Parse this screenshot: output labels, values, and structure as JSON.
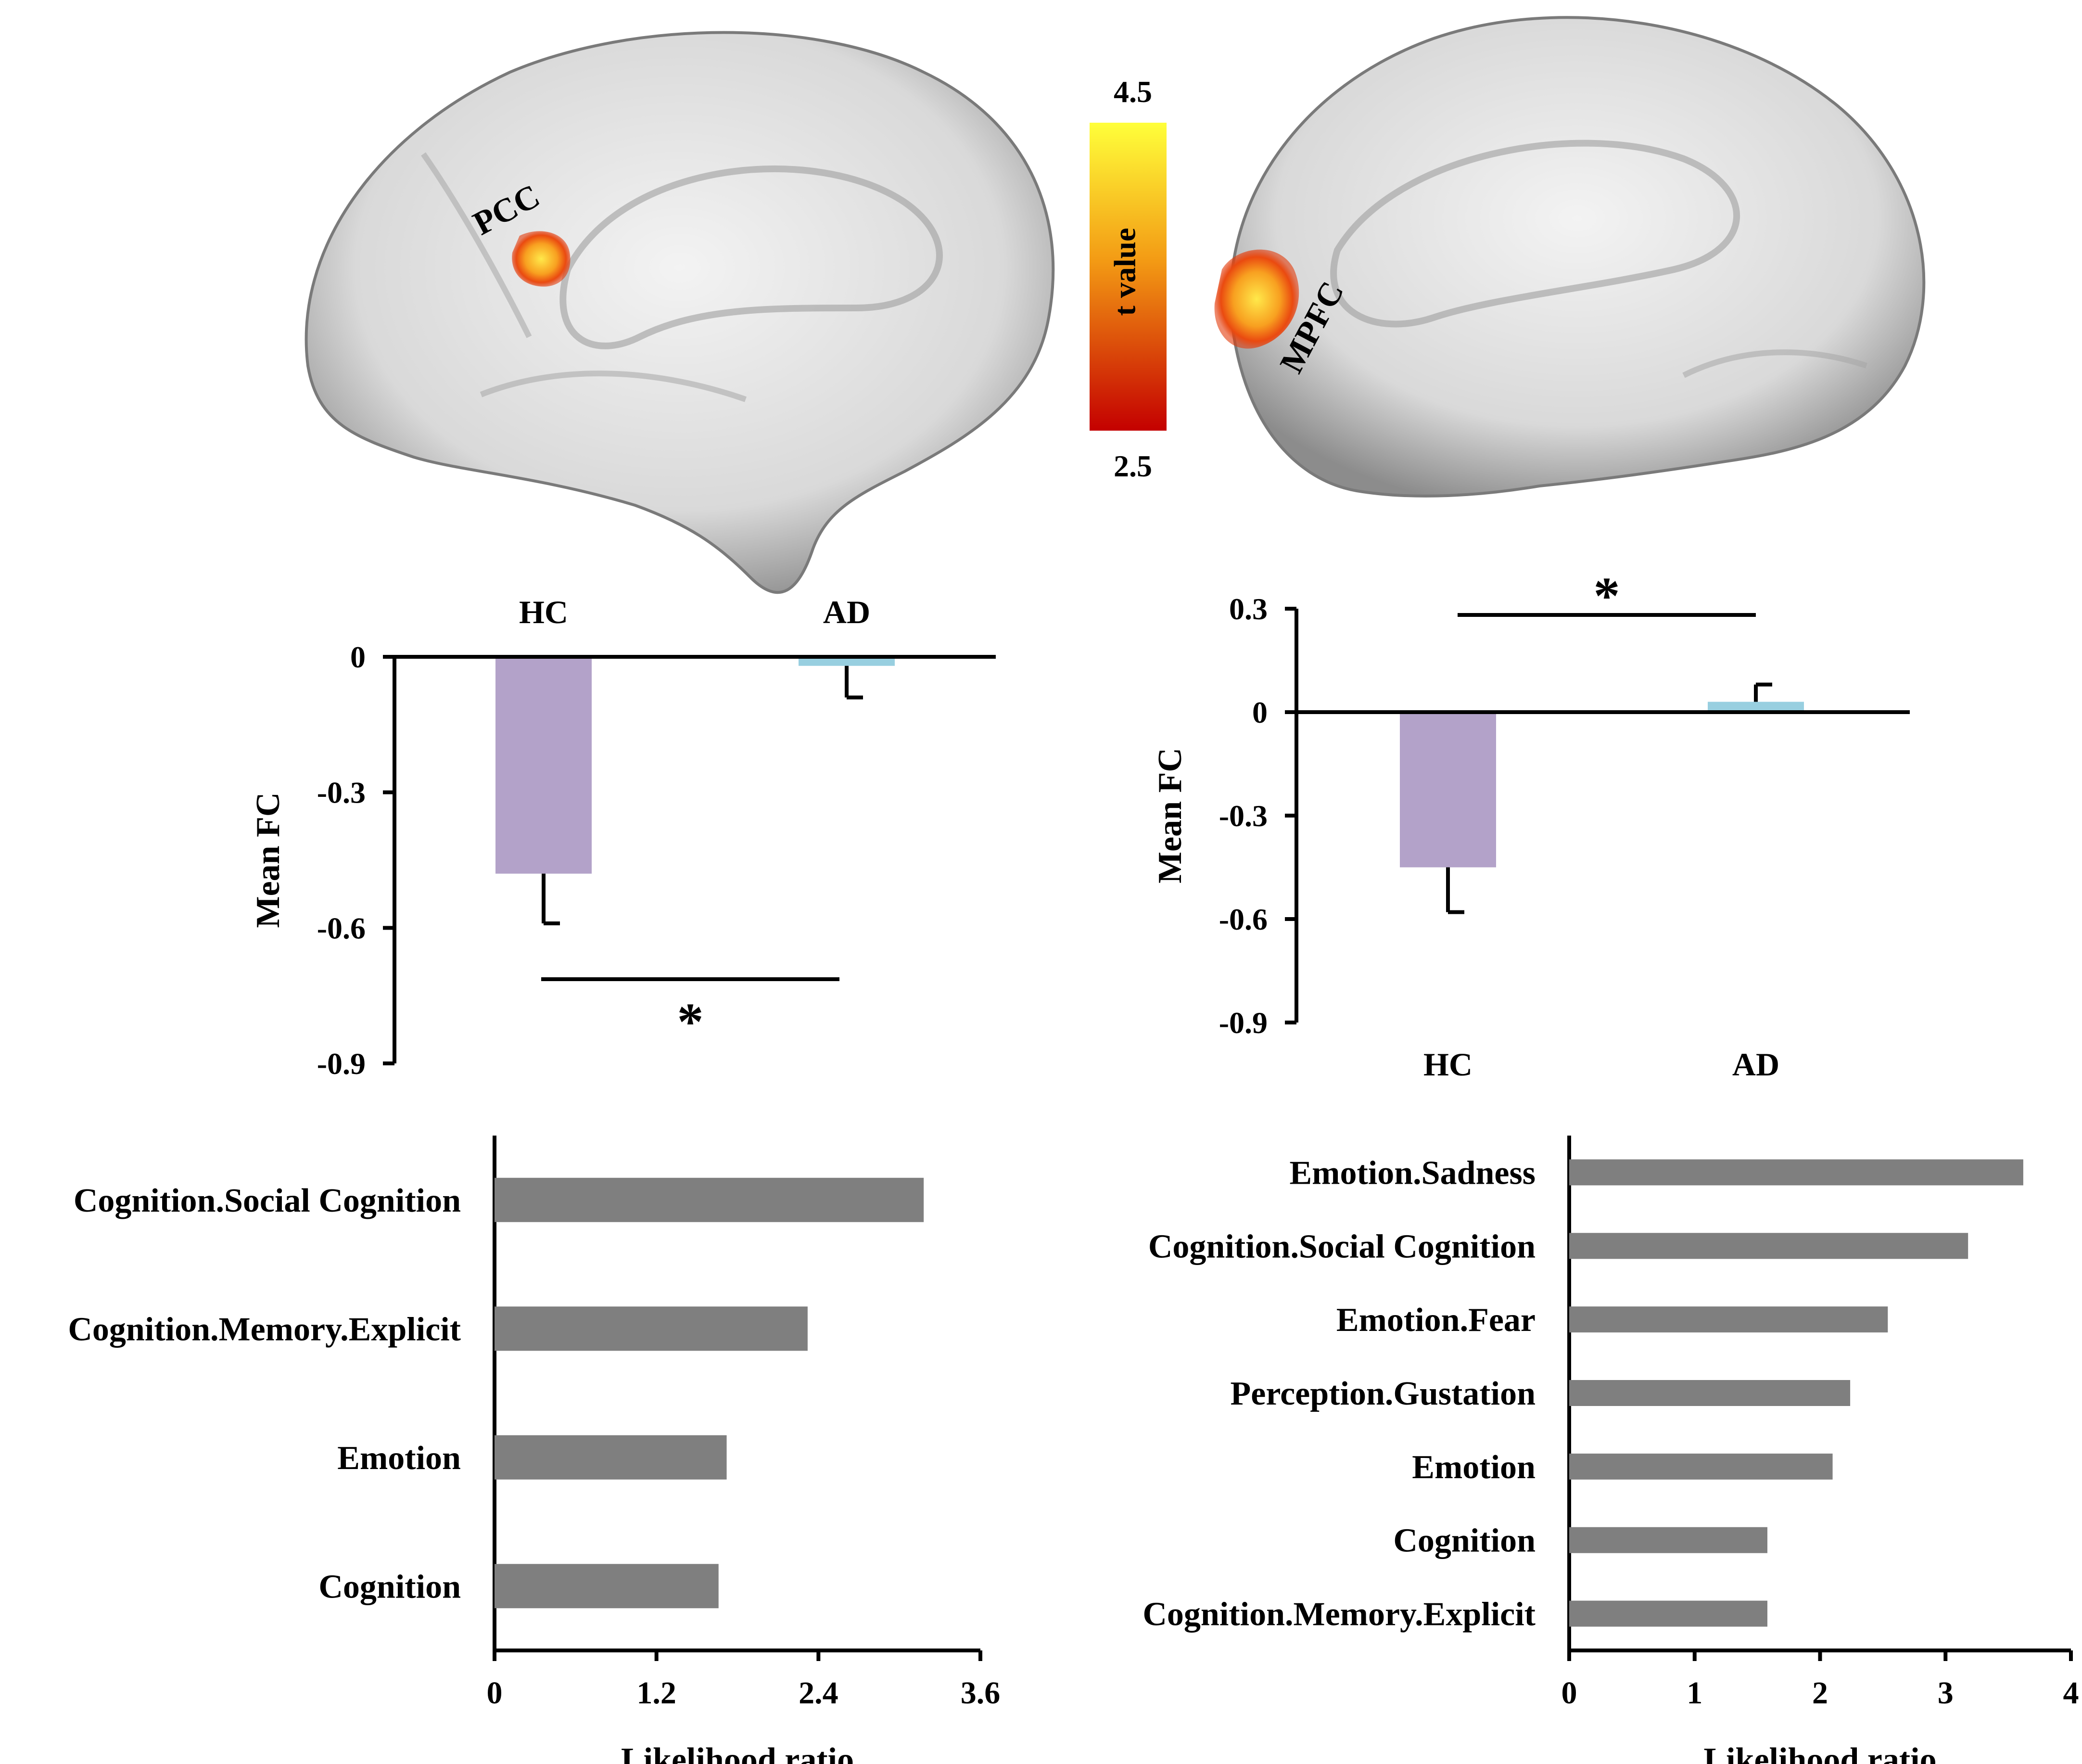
{
  "colors": {
    "hc_bar": "#b3a2c9",
    "ad_bar": "#98cfe0",
    "lr_bar": "#7f7f7f",
    "axis": "#000000",
    "cmap_low": "#c40000",
    "cmap_high": "#ffff3a"
  },
  "brain": {
    "left_label": "PCC",
    "right_label": "MPFC",
    "colorbar": {
      "title": "t value",
      "max_label": "4.5",
      "min_label": "2.5",
      "min": 2.5,
      "max": 4.5
    }
  },
  "chart_data": [
    {
      "id": "pcc-fc",
      "type": "bar",
      "title": "",
      "ylabel": "Mean FC",
      "ylim": [
        -0.9,
        0
      ],
      "yticks": [
        0,
        -0.3,
        -0.6,
        -0.9
      ],
      "ytick_labels": [
        "0",
        "-0.3",
        "-0.6",
        "-0.9"
      ],
      "categories": [
        "HC",
        "AD"
      ],
      "values": [
        -0.48,
        -0.02
      ],
      "errors": [
        0.11,
        0.07
      ],
      "significance": "*",
      "category_labels_position": "top"
    },
    {
      "id": "mpfc-fc",
      "type": "bar",
      "title": "",
      "ylabel": "Mean FC",
      "ylim": [
        -0.9,
        0.3
      ],
      "yticks": [
        0.3,
        0,
        -0.3,
        -0.6,
        -0.9
      ],
      "ytick_labels": [
        "0.3",
        "0",
        "-0.3",
        "-0.6",
        "-0.9"
      ],
      "categories": [
        "HC",
        "AD"
      ],
      "values": [
        -0.45,
        0.03
      ],
      "errors": [
        0.13,
        0.05
      ],
      "significance": "*",
      "category_labels_position": "bottom"
    },
    {
      "id": "pcc-decoding",
      "type": "bar",
      "orientation": "horizontal",
      "xlabel": "Likelihood ratio",
      "xlim": [
        0,
        3.6
      ],
      "xticks": [
        0,
        1.2,
        2.4,
        3.6
      ],
      "xtick_labels": [
        "0",
        "1.2",
        "2.4",
        "3.6"
      ],
      "categories": [
        "Cognition.Social Cognition",
        "Cognition.Memory.Explicit",
        "Emotion",
        "Cognition"
      ],
      "values": [
        3.18,
        2.32,
        1.72,
        1.66
      ]
    },
    {
      "id": "mpfc-decoding",
      "type": "bar",
      "orientation": "horizontal",
      "xlabel": "Likelihood ratio",
      "xlim": [
        0,
        4
      ],
      "xticks": [
        0,
        1,
        2,
        3,
        4
      ],
      "xtick_labels": [
        "0",
        "1",
        "2",
        "3",
        "4"
      ],
      "categories": [
        "Emotion.Sadness",
        "Cognition.Social Cognition",
        "Emotion.Fear",
        "Perception.Gustation",
        "Emotion",
        "Cognition",
        "Cognition.Memory.Explicit"
      ],
      "values": [
        3.62,
        3.18,
        2.54,
        2.24,
        2.1,
        1.58,
        1.58
      ]
    }
  ]
}
